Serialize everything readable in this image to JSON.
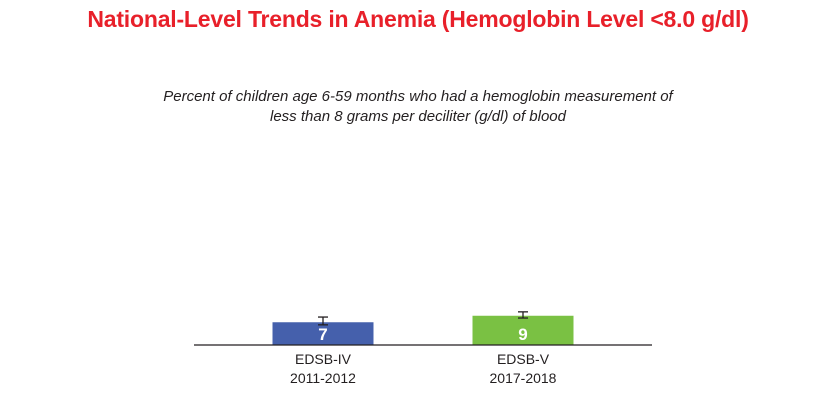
{
  "header": {
    "title": "National-Level Trends in Anemia (Hemoglobin Level <8.0 g/dl)",
    "subtitle_line1": "Percent of children age 6-59 months who had a hemoglobin measurement of",
    "subtitle_line2": "less than 8 grams per deciliter (g/dl) of blood"
  },
  "colors": {
    "title": "#e8202a",
    "bar_1": "#4560ac",
    "bar_2": "#7ac143",
    "axis": "#231f20"
  },
  "chart_data": {
    "type": "bar",
    "title": "National-Level Trends in Anemia (Hemoglobin Level <8.0 g/dl)",
    "subtitle": "Percent of children age 6-59 months who had a hemoglobin measurement of less than 8 grams per deciliter (g/dl) of blood",
    "categories": [
      {
        "line1": "EDSB-IV",
        "line2": "2011-2012"
      },
      {
        "line1": "EDSB-V",
        "line2": "2017-2018"
      }
    ],
    "values": [
      7,
      9
    ],
    "value_labels": [
      "7",
      "9"
    ],
    "error_bars": [
      [
        6.2,
        8.6
      ],
      [
        8.3,
        10.2
      ]
    ],
    "bar_colors": [
      "#4560ac",
      "#7ac143"
    ],
    "ylim": [
      0,
      100
    ],
    "xlabel": "",
    "ylabel": "",
    "grid": false,
    "legend": "none"
  }
}
